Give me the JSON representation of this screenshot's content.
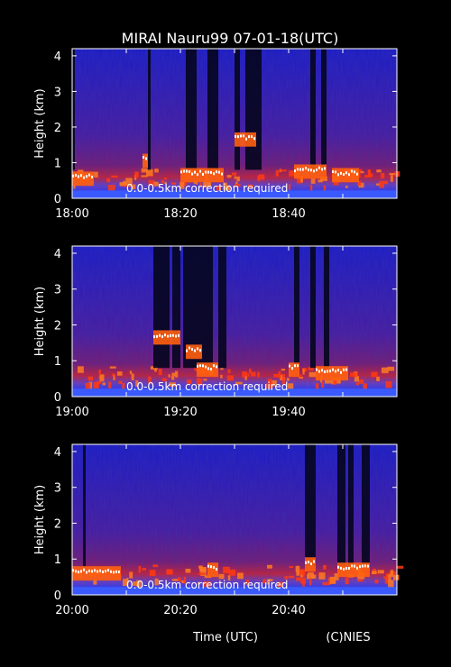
{
  "figure": {
    "title": "MIRAI Nauru99 07-01-18(UTC)",
    "xlabel": "Time (UTC)",
    "credit": "(C)NIES"
  },
  "colors": {
    "background": "#000000",
    "low_backscatter": "#1a1ad8",
    "mid_backscatter": "#8a1a6a",
    "high_backscatter": "#ff3a10",
    "peak_backscatter": "#ffffff"
  },
  "chart_data": [
    {
      "type": "heatmap",
      "ylabel": "Height (km)",
      "ylim": [
        0,
        4.2
      ],
      "yticks": [
        "0",
        "1",
        "2",
        "3",
        "4"
      ],
      "xlim_minutes": [
        0,
        60
      ],
      "xticks": [
        "18:00",
        "18:20",
        "18:40"
      ],
      "xtick_minutes": [
        0,
        20,
        40
      ],
      "annotation": "0.0-0.5km correction required",
      "cloud_base": [
        {
          "t": [
            0,
            4
          ],
          "h": 0.6
        },
        {
          "t": [
            13,
            14
          ],
          "h": 1.1
        },
        {
          "t": [
            20,
            28
          ],
          "h": 0.7
        },
        {
          "t": [
            30,
            34
          ],
          "h": 1.7
        },
        {
          "t": [
            41,
            47
          ],
          "h": 0.8
        },
        {
          "t": [
            48,
            53
          ],
          "h": 0.7
        }
      ],
      "dark_columns": [
        {
          "t": [
            0,
            0.5
          ]
        },
        {
          "t": [
            14,
            14.5
          ]
        },
        {
          "t": [
            21,
            23
          ]
        },
        {
          "t": [
            25,
            27
          ]
        },
        {
          "t": [
            30,
            31
          ]
        },
        {
          "t": [
            32,
            35
          ]
        },
        {
          "t": [
            44,
            45
          ]
        },
        {
          "t": [
            46,
            47
          ]
        }
      ]
    },
    {
      "type": "heatmap",
      "ylabel": "Height (km)",
      "ylim": [
        0,
        4.2
      ],
      "yticks": [
        "0",
        "1",
        "2",
        "3",
        "4"
      ],
      "xlim_minutes": [
        0,
        60
      ],
      "xticks": [
        "19:00",
        "19:20",
        "19:40"
      ],
      "xtick_minutes": [
        0,
        20,
        40
      ],
      "annotation": "0.0-0.5km correction required",
      "cloud_base": [
        {
          "t": [
            15,
            20
          ],
          "h": 1.7
        },
        {
          "t": [
            21,
            24
          ],
          "h": 1.3
        },
        {
          "t": [
            23,
            27
          ],
          "h": 0.8
        },
        {
          "t": [
            40,
            42
          ],
          "h": 0.8
        },
        {
          "t": [
            45,
            51
          ],
          "h": 0.7
        }
      ],
      "dark_columns": [
        {
          "t": [
            15,
            18
          ]
        },
        {
          "t": [
            18.5,
            20
          ]
        },
        {
          "t": [
            20.5,
            26
          ]
        },
        {
          "t": [
            27,
            28.5
          ]
        },
        {
          "t": [
            41,
            42
          ]
        },
        {
          "t": [
            44,
            45
          ]
        },
        {
          "t": [
            46.5,
            47.5
          ]
        }
      ]
    },
    {
      "type": "heatmap",
      "ylabel": "Height (km)",
      "ylim": [
        0,
        4.2
      ],
      "yticks": [
        "0",
        "1",
        "2",
        "3",
        "4"
      ],
      "xlim_minutes": [
        0,
        60
      ],
      "xticks": [
        "20:00",
        "20:20",
        "20:40"
      ],
      "xtick_minutes": [
        0,
        20,
        40
      ],
      "annotation": "0.0-0.5km correction required",
      "cloud_base": [
        {
          "t": [
            0,
            9
          ],
          "h": 0.65
        },
        {
          "t": [
            25,
            27
          ],
          "h": 0.75
        },
        {
          "t": [
            43,
            45
          ],
          "h": 0.9
        },
        {
          "t": [
            49,
            55
          ],
          "h": 0.75
        }
      ],
      "dark_columns": [
        {
          "t": [
            2,
            2.5
          ]
        },
        {
          "t": [
            43,
            45
          ]
        },
        {
          "t": [
            49,
            50.5
          ]
        },
        {
          "t": [
            51,
            52
          ]
        },
        {
          "t": [
            53.5,
            55
          ]
        }
      ]
    }
  ]
}
